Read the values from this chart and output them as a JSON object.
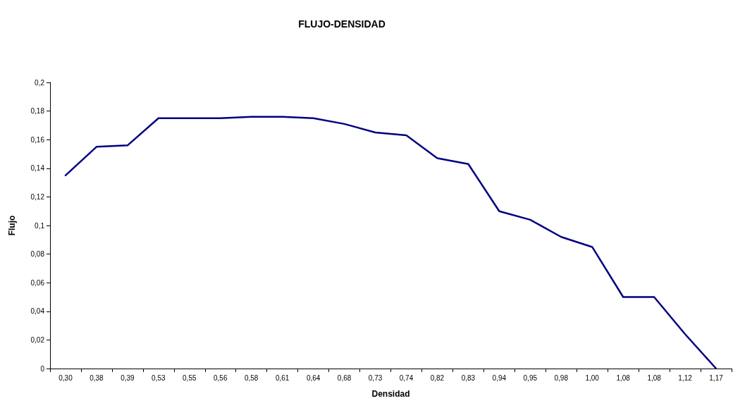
{
  "chart_data": {
    "type": "line",
    "title": "FLUJO-DENSIDAD",
    "xlabel": "Densidad",
    "ylabel": "Flujo",
    "categories": [
      "0,30",
      "0,38",
      "0,39",
      "0,53",
      "0,55",
      "0,56",
      "0,58",
      "0,61",
      "0,64",
      "0,68",
      "0,73",
      "0,74",
      "0,82",
      "0,83",
      "0,94",
      "0,95",
      "0,98",
      "1,00",
      "1,08",
      "1,08",
      "1,12",
      "1,17"
    ],
    "series": [
      {
        "color": "#000080",
        "values": [
          0.135,
          0.155,
          0.156,
          0.175,
          0.175,
          0.175,
          0.176,
          0.176,
          0.175,
          0.171,
          0.165,
          0.163,
          0.147,
          0.143,
          0.11,
          0.104,
          0.092,
          0.085,
          0.05,
          0.05,
          0.024,
          0
        ]
      }
    ],
    "ylim": [
      0,
      0.2
    ],
    "yticks": [
      0,
      {
        "value": 0.02,
        "label": "0,02"
      },
      {
        "value": 0.04,
        "label": "0,04"
      },
      {
        "value": 0.06,
        "label": "0,06"
      },
      {
        "value": 0.08,
        "label": "0,08"
      },
      {
        "value": 0.1,
        "label": "0,1"
      },
      {
        "value": 0.12,
        "label": "0,12"
      },
      {
        "value": 0.14,
        "label": "0,14"
      },
      {
        "value": 0.16,
        "label": "0,16"
      },
      {
        "value": 0.18,
        "label": "0,18"
      },
      {
        "value": 0.2,
        "label": "0,2"
      }
    ],
    "grid": false,
    "marker": "none",
    "line_style": "solid"
  }
}
